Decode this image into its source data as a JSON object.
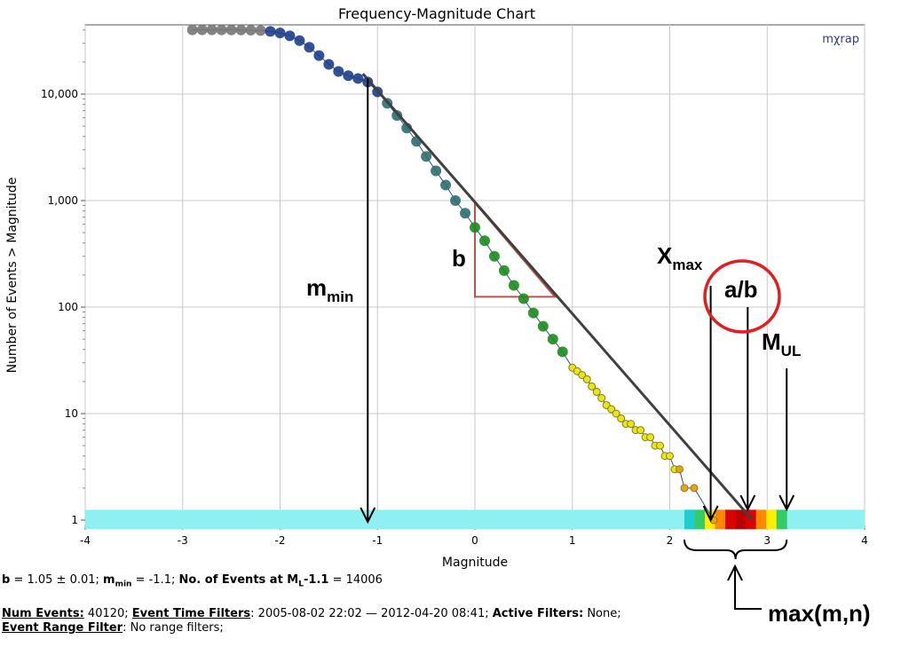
{
  "chart_data": {
    "type": "scatter",
    "title": "Frequency-Magnitude Chart",
    "xlabel": "Magnitude",
    "ylabel": "Number of Events > Magnitude",
    "y_scale": "log",
    "xlim": [
      -4,
      4
    ],
    "ylim_log10": [
      -0.05,
      4.65
    ],
    "x_ticks": [
      -4,
      -3,
      -2,
      -1,
      0,
      1,
      2,
      3,
      4
    ],
    "y_ticks": [
      1,
      10,
      100,
      1000,
      10000
    ],
    "y_tick_labels": [
      "1",
      "10",
      "100",
      "1,000",
      "10,000"
    ],
    "grid": true,
    "watermark": "mχrap",
    "series": [
      {
        "color_scale": [
          "#777777",
          "#1f3f8a",
          "#2e6e6e",
          "#1f8a1f",
          "#e6e61a",
          "#e6a21a"
        ],
        "x": [
          -2.9,
          -2.8,
          -2.7,
          -2.6,
          -2.5,
          -2.4,
          -2.3,
          -2.2,
          -2.1,
          -2.0,
          -1.9,
          -1.8,
          -1.7,
          -1.6,
          -1.5,
          -1.4,
          -1.3,
          -1.2,
          -1.1,
          -1.0,
          -0.9,
          -0.8,
          -0.7,
          -0.6,
          -0.5,
          -0.4,
          -0.3,
          -0.2,
          -0.1,
          0.0,
          0.1,
          0.2,
          0.3,
          0.4,
          0.5,
          0.6,
          0.7,
          0.8,
          0.9,
          1.0,
          1.05,
          1.1,
          1.15,
          1.2,
          1.25,
          1.3,
          1.35,
          1.4,
          1.45,
          1.5,
          1.55,
          1.6,
          1.65,
          1.7,
          1.75,
          1.8,
          1.85,
          1.9,
          1.95,
          2.0,
          2.05,
          2.1,
          2.15,
          2.25,
          2.45
        ],
        "y": [
          40120,
          40100,
          40080,
          40050,
          40000,
          39950,
          39800,
          39500,
          38800,
          37500,
          35200,
          31800,
          27500,
          23000,
          19000,
          16300,
          14900,
          14006,
          13000,
          10500,
          8200,
          6300,
          4800,
          3600,
          2600,
          1900,
          1400,
          1000,
          760,
          560,
          420,
          300,
          220,
          160,
          120,
          88,
          66,
          50,
          38,
          27,
          25,
          23,
          21,
          18,
          16,
          14,
          12,
          11,
          10,
          9,
          8,
          8,
          7,
          7,
          6,
          6,
          5,
          5,
          4,
          4,
          3,
          3,
          2,
          2,
          1
        ]
      }
    ],
    "fit_line": {
      "color": "#404040",
      "x": [
        -1.15,
        2.85
      ],
      "y": [
        15500,
        1
      ]
    },
    "triangle": {
      "color": "#c0504d",
      "x": [
        0.0,
        0.82
      ],
      "y": [
        950,
        125
      ]
    },
    "mmin_marker": {
      "x": -1.1,
      "y_top": 14006
    },
    "xmax_marker": {
      "x": 2.42
    },
    "ab_marker": {
      "x": 2.8
    },
    "mul_marker": {
      "x": 3.2
    },
    "heatband": {
      "x": [
        2.15,
        3.2
      ],
      "band_y": [
        1.25,
        0.82
      ],
      "colors": [
        "#22cccc",
        "#33cc66",
        "#ffee00",
        "#ff8800",
        "#dd0000",
        "#bb0000",
        "#dd0000",
        "#ff8800",
        "#ffee00",
        "#33cc66"
      ]
    },
    "annotations": {
      "b_label": "b",
      "mmin_main": "m",
      "mmin_sub": "min",
      "xmax_main": "X",
      "xmax_sub": "max",
      "ab_label": "a/b",
      "mul_main": "M",
      "mul_sub": "UL",
      "maxmn_label": "max(m,n)"
    }
  },
  "info": {
    "b_key": "b",
    "b_value": " = 1.05 ± 0.01; ",
    "mmin_key": "m",
    "mmin_sub": "min",
    "mmin_value": " = -1.1; ",
    "events_key": "No. of Events at M",
    "events_sub": "L",
    "events_key2": "-1.1",
    "events_value": " = 14006",
    "num_events_key": "Num Events:",
    "num_events_value": " 40120; ",
    "time_filters_key": "Event Time Filters",
    "time_filters_value": ": 2005-08-02 22:02 — 2012-04-20 08:41; ",
    "active_filters_key": "Active Filters:",
    "active_filters_value": " None;",
    "range_filter_key": "Event Range Filter",
    "range_filter_value": ": No range filters;"
  }
}
